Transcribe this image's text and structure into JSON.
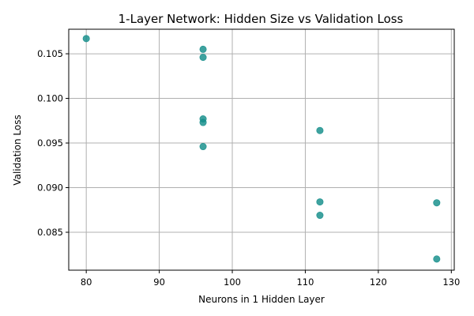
{
  "chart_data": {
    "type": "scatter",
    "title": "1-Layer Network: Hidden Size vs Validation Loss",
    "xlabel": "Neurons in 1 Hidden Layer",
    "ylabel": "Validation Loss",
    "xlim": [
      77.6,
      130.4
    ],
    "ylim": [
      0.08075,
      0.10775
    ],
    "x_ticks": [
      80,
      90,
      100,
      110,
      120,
      130
    ],
    "y_ticks": [
      0.085,
      0.09,
      0.095,
      0.1,
      0.105
    ],
    "x_tick_labels": [
      "80",
      "90",
      "100",
      "110",
      "120",
      "130"
    ],
    "y_tick_labels": [
      "0.085",
      "0.090",
      "0.095",
      "0.100",
      "0.105"
    ],
    "grid": true,
    "marker_color": "#138d8a",
    "points": [
      {
        "x": 80,
        "y": 0.1067
      },
      {
        "x": 96,
        "y": 0.1055
      },
      {
        "x": 96,
        "y": 0.1046
      },
      {
        "x": 96,
        "y": 0.0977
      },
      {
        "x": 96,
        "y": 0.0973
      },
      {
        "x": 96,
        "y": 0.0946
      },
      {
        "x": 112,
        "y": 0.0964
      },
      {
        "x": 112,
        "y": 0.0884
      },
      {
        "x": 112,
        "y": 0.0869
      },
      {
        "x": 128,
        "y": 0.0883
      },
      {
        "x": 128,
        "y": 0.082
      }
    ]
  }
}
